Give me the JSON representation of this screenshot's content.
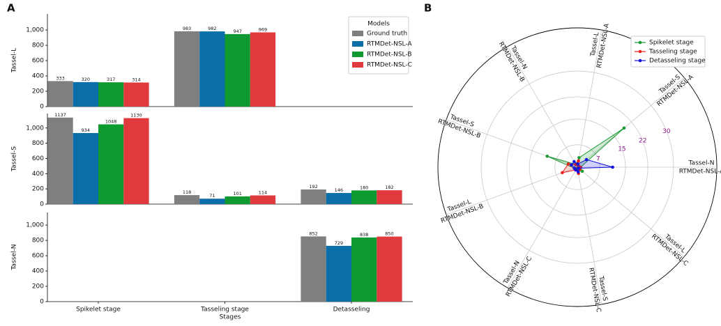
{
  "chart_data": [
    {
      "type": "bar",
      "panel": "A",
      "ylabel": "Tassel-L",
      "ylim": [
        0,
        1210
      ],
      "yticks": [
        0,
        200,
        400,
        600,
        800,
        {
          "value": 1000,
          "label": "1,000"
        }
      ],
      "legend": "upper right",
      "legend_title": "Models",
      "series": [
        {
          "name": "Ground truth",
          "color": "#7f7f7f",
          "values": [
            333,
            983,
            null
          ]
        },
        {
          "name": "RTMDet-NSL-A",
          "color": "#0a6fa8",
          "values": [
            320,
            982,
            null
          ]
        },
        {
          "name": "RTMDet-NSL-B",
          "color": "#0f9a31",
          "values": [
            317,
            947,
            null
          ]
        },
        {
          "name": "RTMDet-NSL-C",
          "color": "#e0393e",
          "values": [
            314,
            969,
            null
          ]
        }
      ]
    },
    {
      "type": "bar",
      "ylabel": "Tassel-S",
      "ylim": [
        0,
        1190
      ],
      "yticks": [
        0,
        200,
        400,
        600,
        800,
        {
          "value": 1000,
          "label": "1,000"
        }
      ],
      "series": [
        {
          "values": [
            1137,
            118,
            192
          ]
        },
        {
          "values": [
            934,
            71,
            146
          ]
        },
        {
          "values": [
            1048,
            101,
            180
          ]
        },
        {
          "values": [
            1130,
            114,
            182
          ]
        }
      ]
    },
    {
      "type": "bar",
      "ylabel": "Tassel-N",
      "xlabel": "Stages",
      "categories": [
        "Spikelet stage",
        "Tasseling stage",
        "Detasseling"
      ],
      "ylim": [
        0,
        1165
      ],
      "yticks": [
        0,
        200,
        400,
        600,
        800,
        {
          "value": 1000,
          "label": "1,000"
        }
      ],
      "series": [
        {
          "values": [
            null,
            null,
            852
          ]
        },
        {
          "values": [
            null,
            null,
            729
          ]
        },
        {
          "values": [
            null,
            null,
            838
          ]
        },
        {
          "values": [
            null,
            null,
            850
          ]
        }
      ]
    },
    {
      "type": "radar",
      "panel": "B",
      "categories": [
        [
          "Tassel-N",
          "RTMDet-NSL-A"
        ],
        [
          "Tassel-S",
          "RTMDet-NSL-A"
        ],
        [
          "Tassel-L",
          "RTMDet-NSL-A"
        ],
        [
          "Tassel-N",
          "RTMDet-NSL-B"
        ],
        [
          "Tassel-S",
          "RTMDet-NSL-B"
        ],
        [
          "Tassel-L",
          "RTMDet-NSL-B"
        ],
        [
          "Tassel-N",
          "RTMDet-NSL-C"
        ],
        [
          "Tassel-S",
          "RTMDet-NSL-C"
        ],
        [
          "Tassel-L",
          "RTMDet-NSL-C"
        ]
      ],
      "rlim": [
        0,
        43.5
      ],
      "rticks": [
        7,
        15,
        22,
        30
      ],
      "rtick_color": "#8b1a8b",
      "legend": "upper right",
      "series": [
        {
          "name": "Spikelet stage",
          "color": "#1a9a34",
          "values": [
            1,
            19,
            3,
            1,
            10,
            1,
            0.5,
            1,
            2
          ]
        },
        {
          "name": "Tasseling stage",
          "color": "#e8231f",
          "values": [
            1,
            0.5,
            2,
            1,
            3,
            5,
            1,
            2,
            1
          ]
        },
        {
          "name": "Detasseling stage",
          "color": "#1010e0",
          "values": [
            11,
            3.7,
            1,
            2,
            2,
            1,
            1,
            1.5,
            0.5
          ]
        }
      ]
    }
  ]
}
